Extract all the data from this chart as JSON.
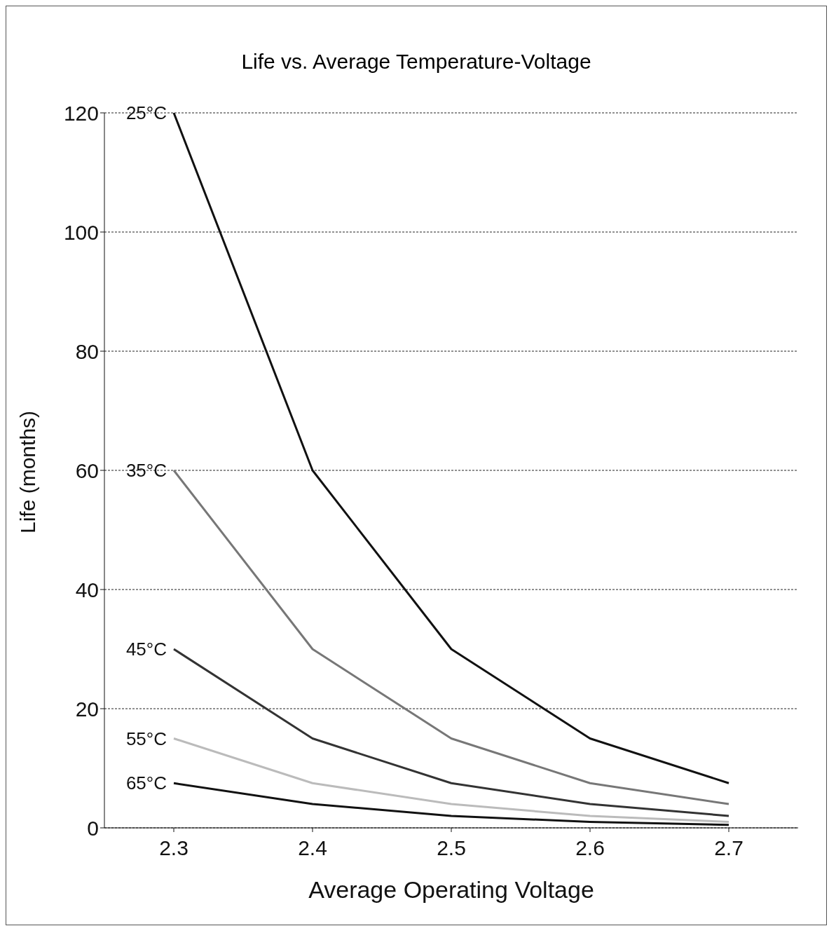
{
  "chart_data": {
    "type": "line",
    "title": "Life vs. Average Temperature-Voltage",
    "xlabel": "Average Operating Voltage",
    "ylabel": "Life (months)",
    "categories": [
      "2.3",
      "2.4",
      "2.5",
      "2.6",
      "2.7"
    ],
    "series": [
      {
        "name": "25°C",
        "color": "#111111",
        "values": [
          120,
          60,
          30,
          15,
          7.5
        ]
      },
      {
        "name": "35°C",
        "color": "#777777",
        "values": [
          60,
          30,
          15,
          7.5,
          4
        ]
      },
      {
        "name": "45°C",
        "color": "#333333",
        "values": [
          30,
          15,
          7.5,
          4,
          2
        ]
      },
      {
        "name": "55°C",
        "color": "#bbbbbb",
        "values": [
          15,
          7.5,
          4,
          2,
          1
        ]
      },
      {
        "name": "65°C",
        "color": "#111111",
        "values": [
          7.5,
          4,
          2,
          1,
          0.5
        ]
      }
    ],
    "ylim": [
      0,
      120
    ],
    "yticks": [
      0,
      20,
      40,
      60,
      80,
      100,
      120
    ],
    "grid": "y",
    "legend": false,
    "marker": "none",
    "line_style": "solid"
  }
}
